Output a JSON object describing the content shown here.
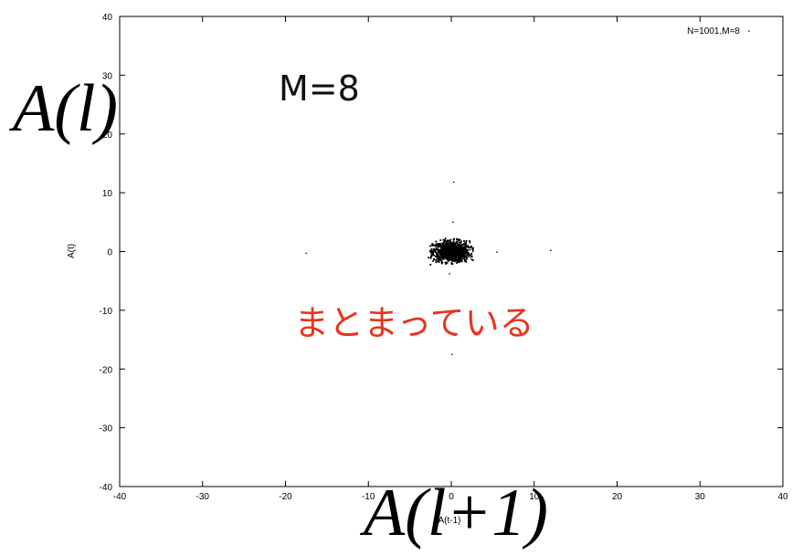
{
  "chart_data": {
    "type": "scatter",
    "xlabel": "A(t-1)",
    "ylabel": "A(t)",
    "xlim": [
      -40,
      40
    ],
    "ylim": [
      -40,
      40
    ],
    "x_ticks": [
      "-40",
      "-30",
      "-20",
      "-10",
      "0",
      "10",
      "20",
      "30",
      "40"
    ],
    "y_ticks": [
      "-40",
      "-30",
      "-20",
      "-10",
      "0",
      "10",
      "20",
      "30",
      "40"
    ],
    "grid": false,
    "legend": {
      "label": "N=1001,M=8",
      "placement": "top-right"
    },
    "series": [
      {
        "name": "N=1001,M=8",
        "cluster": {
          "center": [
            0,
            0
          ],
          "spread_x": 2.0,
          "spread_y": 1.6,
          "count": 990
        },
        "points": [
          [
            -17.5,
            -0.3
          ],
          [
            12.0,
            0.2
          ],
          [
            5.5,
            -0.1
          ],
          [
            0.3,
            11.8
          ],
          [
            0.2,
            5.0
          ],
          [
            0.1,
            -17.5
          ],
          [
            -0.2,
            -3.8
          ]
        ]
      }
    ]
  },
  "annotations": {
    "m_label": "M=8",
    "jp_note": "まとまっている",
    "big_ylabel": "A(l)",
    "big_xlabel": "A(l+1)"
  },
  "colors": {
    "points": "#000000",
    "note": "#e8341c"
  }
}
